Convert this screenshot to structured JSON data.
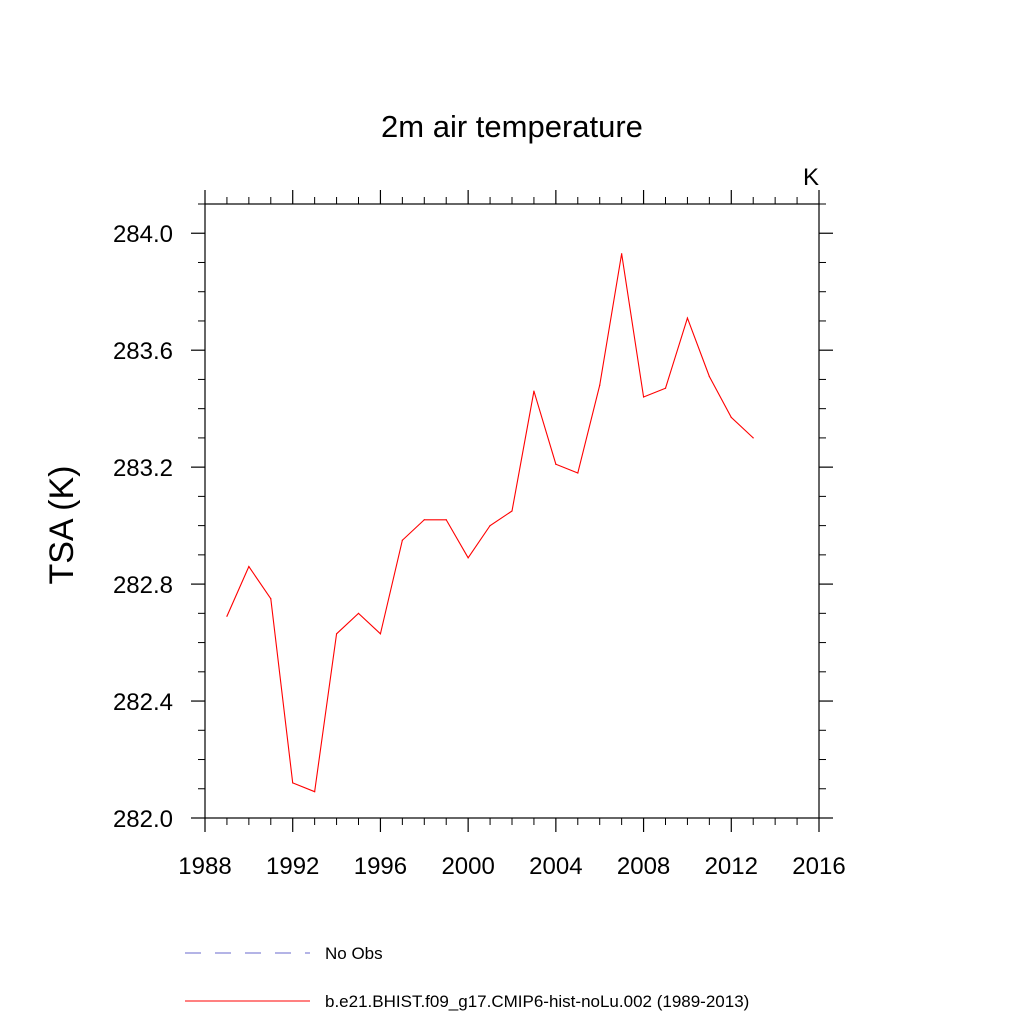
{
  "chart_data": {
    "type": "line",
    "title": "2m air temperature",
    "units": "K",
    "xlabel": "",
    "ylabel": "TSA  (K)",
    "xlim": [
      1988,
      2016
    ],
    "ylim": [
      282.0,
      284.1
    ],
    "xticks": [
      1988,
      1992,
      1996,
      2000,
      2004,
      2008,
      2012,
      2016
    ],
    "yticks": [
      282.0,
      282.4,
      282.8,
      283.2,
      283.6,
      284.0
    ],
    "xtick_labels": [
      "1988",
      "1992",
      "1996",
      "2000",
      "2004",
      "2008",
      "2012",
      "2016"
    ],
    "ytick_labels": [
      "282.0",
      "282.4",
      "282.8",
      "283.2",
      "283.6",
      "284.0"
    ],
    "y_minor_step": 0.1,
    "grid": false,
    "series": [
      {
        "name": "b.e21.BHIST.f09_g17.CMIP6-hist-noLu.002 (1989-2013)",
        "color": "#ff0000",
        "dash": "solid",
        "x": [
          1989,
          1990,
          1991,
          1992,
          1993,
          1994,
          1995,
          1996,
          1997,
          1998,
          1999,
          2000,
          2001,
          2002,
          2003,
          2004,
          2005,
          2006,
          2007,
          2008,
          2009,
          2010,
          2011,
          2012,
          2013
        ],
        "values": [
          282.69,
          282.86,
          282.75,
          282.12,
          282.09,
          282.63,
          282.7,
          282.63,
          282.95,
          283.02,
          283.02,
          282.89,
          283.0,
          283.05,
          283.46,
          283.21,
          283.18,
          283.48,
          283.93,
          283.44,
          283.47,
          283.71,
          283.51,
          283.37,
          283.3
        ]
      }
    ],
    "legend": [
      {
        "label": "No Obs",
        "color": "#6a6acd",
        "dash": "dashed"
      },
      {
        "label": "b.e21.BHIST.f09_g17.CMIP6-hist-noLu.002 (1989-2013)",
        "color": "#ff0000",
        "dash": "solid"
      }
    ],
    "legend_position": "bottom"
  }
}
